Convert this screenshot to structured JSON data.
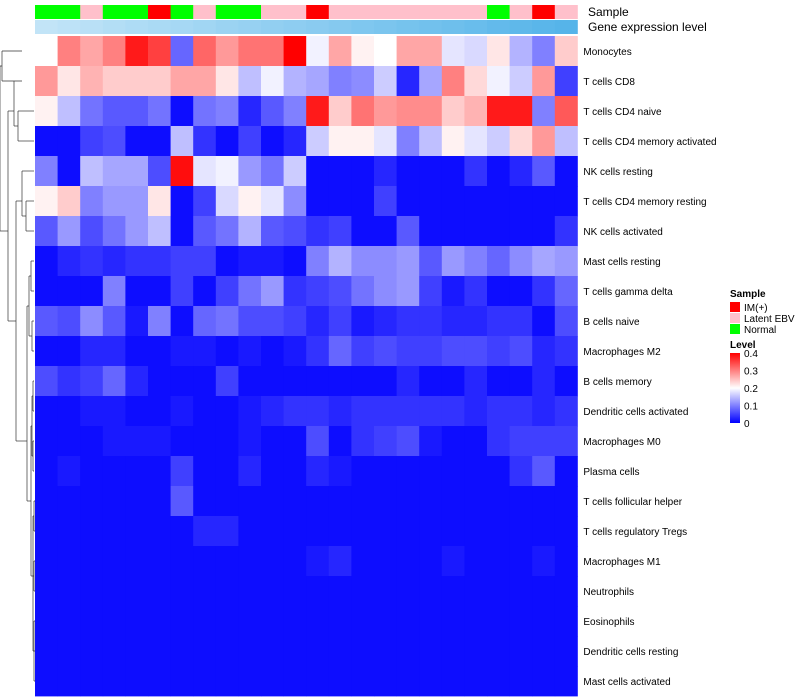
{
  "chart_data": {
    "type": "heatmap",
    "annotation_labels": [
      "Sample",
      "Gene expression level"
    ],
    "sample_groups": [
      "Normal",
      "Normal",
      "Latent EBV",
      "Normal",
      "Normal",
      "IM(+)",
      "Normal",
      "Latent EBV",
      "Normal",
      "Normal",
      "Latent EBV",
      "Latent EBV",
      "IM(+)",
      "Latent EBV",
      "Latent EBV",
      "Latent EBV",
      "Latent EBV",
      "Latent EBV",
      "Latent EBV",
      "Latent EBV",
      "Normal",
      "Latent EBV",
      "IM(+)",
      "Latent EBV"
    ],
    "expression_level": [
      0.04,
      0.08,
      0.12,
      0.17,
      0.21,
      0.25,
      0.29,
      0.33,
      0.38,
      0.42,
      0.46,
      0.5,
      0.54,
      0.58,
      0.63,
      0.67,
      0.71,
      0.75,
      0.79,
      0.83,
      0.88,
      0.92,
      0.96,
      1.0
    ],
    "rows": [
      "Monocytes",
      "T cells CD8",
      "T cells CD4 naive",
      "T cells CD4 memory activated",
      "NK cells resting",
      "T cells CD4 memory resting",
      "NK cells activated",
      "Mast cells resting",
      "T cells gamma delta",
      "B cells naive",
      "Macrophages M2",
      "B cells memory",
      "Dendritic cells activated",
      "Macrophages M0",
      "Plasma cells",
      "T cells follicular helper",
      "T cells regulatory  Tregs",
      "Macrophages M1",
      "Neutrophils",
      "Eosinophils",
      "Dendritic cells resting",
      "Mast cells activated"
    ],
    "values": [
      [
        0.2,
        0.3,
        0.27,
        0.3,
        0.38,
        0.35,
        0.08,
        0.32,
        0.28,
        0.31,
        0.31,
        0.4,
        0.19,
        0.27,
        0.21,
        0.2,
        0.27,
        0.27,
        0.18,
        0.17,
        0.22,
        0.14,
        0.1,
        0.24
      ],
      [
        0.28,
        0.22,
        0.26,
        0.24,
        0.24,
        0.24,
        0.27,
        0.27,
        0.22,
        0.15,
        0.19,
        0.14,
        0.13,
        0.1,
        0.11,
        0.16,
        0.03,
        0.13,
        0.3,
        0.23,
        0.19,
        0.16,
        0.28,
        0.05
      ],
      [
        0.21,
        0.15,
        0.09,
        0.07,
        0.07,
        0.09,
        0.01,
        0.09,
        0.1,
        0.03,
        0.07,
        0.1,
        0.38,
        0.24,
        0.31,
        0.28,
        0.29,
        0.29,
        0.24,
        0.26,
        0.38,
        0.38,
        0.1,
        0.33
      ],
      [
        0.01,
        0.01,
        0.05,
        0.06,
        0.01,
        0.01,
        0.15,
        0.04,
        0.01,
        0.05,
        0.01,
        0.03,
        0.16,
        0.21,
        0.21,
        0.18,
        0.1,
        0.15,
        0.21,
        0.18,
        0.16,
        0.23,
        0.28,
        0.15
      ],
      [
        0.1,
        0.01,
        0.15,
        0.13,
        0.13,
        0.06,
        0.39,
        0.18,
        0.19,
        0.12,
        0.09,
        0.16,
        0.01,
        0.01,
        0.01,
        0.03,
        0.01,
        0.01,
        0.01,
        0.04,
        0.01,
        0.03,
        0.07,
        0.01
      ],
      [
        0.21,
        0.24,
        0.1,
        0.12,
        0.12,
        0.22,
        0.01,
        0.05,
        0.17,
        0.21,
        0.18,
        0.11,
        0.01,
        0.01,
        0.01,
        0.05,
        0.01,
        0.01,
        0.01,
        0.01,
        0.01,
        0.01,
        0.01,
        0.01
      ],
      [
        0.07,
        0.12,
        0.06,
        0.09,
        0.12,
        0.15,
        0.01,
        0.07,
        0.09,
        0.14,
        0.07,
        0.06,
        0.04,
        0.05,
        0.01,
        0.01,
        0.07,
        0.01,
        0.01,
        0.01,
        0.01,
        0.01,
        0.01,
        0.04
      ],
      [
        0.01,
        0.03,
        0.04,
        0.03,
        0.04,
        0.04,
        0.05,
        0.05,
        0.01,
        0.02,
        0.02,
        0.01,
        0.1,
        0.14,
        0.11,
        0.11,
        0.12,
        0.07,
        0.12,
        0.1,
        0.08,
        0.11,
        0.13,
        0.12
      ],
      [
        0.01,
        0.01,
        0.01,
        0.1,
        0.01,
        0.01,
        0.05,
        0.01,
        0.05,
        0.09,
        0.12,
        0.04,
        0.05,
        0.06,
        0.09,
        0.11,
        0.12,
        0.05,
        0.02,
        0.04,
        0.01,
        0.01,
        0.04,
        0.08
      ],
      [
        0.07,
        0.06,
        0.11,
        0.07,
        0.02,
        0.1,
        0.01,
        0.08,
        0.09,
        0.06,
        0.06,
        0.05,
        0.03,
        0.05,
        0.02,
        0.03,
        0.04,
        0.04,
        0.03,
        0.03,
        0.04,
        0.04,
        0.01,
        0.06
      ],
      [
        0.01,
        0.01,
        0.03,
        0.03,
        0.01,
        0.01,
        0.02,
        0.02,
        0.01,
        0.02,
        0.01,
        0.02,
        0.04,
        0.08,
        0.05,
        0.06,
        0.05,
        0.05,
        0.06,
        0.06,
        0.05,
        0.06,
        0.03,
        0.04
      ],
      [
        0.06,
        0.04,
        0.05,
        0.08,
        0.03,
        0.01,
        0.01,
        0.01,
        0.05,
        0.01,
        0.01,
        0.01,
        0.01,
        0.01,
        0.01,
        0.01,
        0.03,
        0.01,
        0.01,
        0.03,
        0.01,
        0.01,
        0.03,
        0.01
      ],
      [
        0.01,
        0.01,
        0.02,
        0.02,
        0.01,
        0.01,
        0.02,
        0.01,
        0.01,
        0.02,
        0.03,
        0.04,
        0.04,
        0.03,
        0.04,
        0.04,
        0.04,
        0.04,
        0.04,
        0.03,
        0.04,
        0.04,
        0.03,
        0.04
      ],
      [
        0.01,
        0.01,
        0.01,
        0.02,
        0.02,
        0.02,
        0.01,
        0.01,
        0.01,
        0.02,
        0.01,
        0.01,
        0.06,
        0.01,
        0.04,
        0.05,
        0.06,
        0.02,
        0.01,
        0.01,
        0.04,
        0.05,
        0.05,
        0.05
      ],
      [
        0.01,
        0.02,
        0.01,
        0.01,
        0.01,
        0.01,
        0.05,
        0.01,
        0.01,
        0.03,
        0.01,
        0.01,
        0.03,
        0.02,
        0.01,
        0.01,
        0.01,
        0.01,
        0.01,
        0.01,
        0.01,
        0.04,
        0.07,
        0.01
      ],
      [
        0.01,
        0.01,
        0.01,
        0.01,
        0.01,
        0.01,
        0.07,
        0.01,
        0.01,
        0.01,
        0.01,
        0.01,
        0.01,
        0.01,
        0.01,
        0.01,
        0.01,
        0.01,
        0.01,
        0.01,
        0.01,
        0.01,
        0.01,
        0.01
      ],
      [
        0.01,
        0.01,
        0.01,
        0.01,
        0.01,
        0.01,
        0.01,
        0.03,
        0.03,
        0.01,
        0.01,
        0.01,
        0.01,
        0.01,
        0.01,
        0.01,
        0.01,
        0.01,
        0.01,
        0.01,
        0.01,
        0.01,
        0.01,
        0.01
      ],
      [
        0.01,
        0.01,
        0.01,
        0.01,
        0.01,
        0.01,
        0.01,
        0.01,
        0.01,
        0.01,
        0.01,
        0.01,
        0.02,
        0.03,
        0.01,
        0.01,
        0.01,
        0.01,
        0.02,
        0.01,
        0.01,
        0.01,
        0.02,
        0.01
      ],
      [
        0.01,
        0.01,
        0.01,
        0.01,
        0.01,
        0.01,
        0.01,
        0.01,
        0.01,
        0.01,
        0.01,
        0.01,
        0.01,
        0.01,
        0.01,
        0.01,
        0.01,
        0.01,
        0.01,
        0.01,
        0.01,
        0.01,
        0.01,
        0.01
      ],
      [
        0.01,
        0.01,
        0.01,
        0.01,
        0.01,
        0.01,
        0.01,
        0.01,
        0.01,
        0.01,
        0.01,
        0.01,
        0.01,
        0.01,
        0.01,
        0.01,
        0.01,
        0.01,
        0.01,
        0.01,
        0.01,
        0.01,
        0.01,
        0.01
      ],
      [
        0.01,
        0.01,
        0.01,
        0.01,
        0.01,
        0.01,
        0.01,
        0.01,
        0.01,
        0.01,
        0.01,
        0.01,
        0.01,
        0.01,
        0.01,
        0.01,
        0.01,
        0.01,
        0.01,
        0.01,
        0.01,
        0.01,
        0.01,
        0.01
      ],
      [
        0.01,
        0.01,
        0.01,
        0.01,
        0.01,
        0.01,
        0.01,
        0.01,
        0.01,
        0.01,
        0.01,
        0.01,
        0.01,
        0.01,
        0.01,
        0.01,
        0.01,
        0.01,
        0.01,
        0.01,
        0.01,
        0.01,
        0.01,
        0.01
      ]
    ],
    "color_scale": {
      "min": 0.0,
      "mid": 0.2,
      "max": 0.4,
      "low_color": "#0000ff",
      "mid_color": "#ffffff",
      "high_color": "#ff0000"
    },
    "legend": {
      "sample_title": "Sample",
      "sample_entries": [
        {
          "label": "IM(+)",
          "color": "#ff0000"
        },
        {
          "label": "Latent EBV",
          "color": "#ffc0cb"
        },
        {
          "label": "Normal",
          "color": "#00ff00"
        }
      ],
      "level_title": "Level",
      "level_ticks": [
        "0.4",
        "0.3",
        "0.2",
        "0.1",
        "0"
      ],
      "placement": "right"
    },
    "expression_colors": {
      "low": "#c6e6f8",
      "high": "#56b4e9"
    },
    "row_dendrogram": true
  }
}
